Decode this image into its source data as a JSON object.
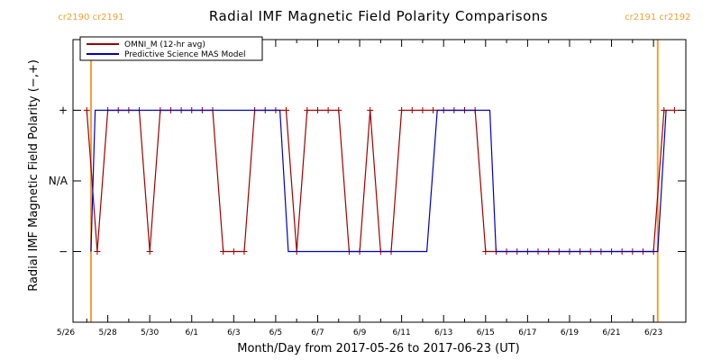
{
  "chart_data": {
    "type": "line",
    "title": "Radial IMF Magnetic Field Polarity Comparisons",
    "xlabel": "Month/Day from 2017-05-26 to 2017-06-23 (UT)",
    "ylabel": "Radial IMF Magnetic Field Polarity (−,+)",
    "xlim": [
      0,
      28.5
    ],
    "ylim": [
      -2,
      2
    ],
    "x_ticks": [
      {
        "x": 0,
        "label": "5/26"
      },
      {
        "x": 2,
        "label": "5/28"
      },
      {
        "x": 4,
        "label": "5/30"
      },
      {
        "x": 6,
        "label": "6/1"
      },
      {
        "x": 8,
        "label": "6/3"
      },
      {
        "x": 10,
        "label": "6/5"
      },
      {
        "x": 12,
        "label": "6/7"
      },
      {
        "x": 14,
        "label": "6/9"
      },
      {
        "x": 16,
        "label": "6/11"
      },
      {
        "x": 18,
        "label": "6/13"
      },
      {
        "x": 20,
        "label": "6/15"
      },
      {
        "x": 22,
        "label": "6/17"
      },
      {
        "x": 24,
        "label": "6/19"
      },
      {
        "x": 26,
        "label": "6/21"
      },
      {
        "x": 28,
        "label": "6/23"
      }
    ],
    "y_ticks": [
      {
        "y": 1,
        "label": "+"
      },
      {
        "y": 0,
        "label": "N/A"
      },
      {
        "y": -1,
        "label": "−"
      }
    ],
    "cr_boundaries": [
      {
        "x": 1.2,
        "left": "cr2190",
        "right": "cr2191"
      },
      {
        "x": 28.2,
        "left": "cr2191",
        "right": "cr2192"
      }
    ],
    "legend_position": "top-left",
    "series": [
      {
        "name": "OMNI_M (12-hr avg)",
        "color": "#a00000",
        "markers": true,
        "points": [
          [
            1.0,
            1
          ],
          [
            1.5,
            -1
          ],
          [
            2.0,
            1
          ],
          [
            2.5,
            1
          ],
          [
            3.0,
            1
          ],
          [
            3.5,
            1
          ],
          [
            4.0,
            -1
          ],
          [
            4.5,
            1
          ],
          [
            5.0,
            1
          ],
          [
            5.5,
            1
          ],
          [
            6.0,
            1
          ],
          [
            6.5,
            1
          ],
          [
            7.0,
            1
          ],
          [
            7.5,
            -1
          ],
          [
            8.0,
            -1
          ],
          [
            8.5,
            -1
          ],
          [
            9.0,
            1
          ],
          [
            9.5,
            1
          ],
          [
            10.0,
            1
          ],
          [
            10.5,
            1
          ],
          [
            11.0,
            -1
          ],
          [
            11.5,
            1
          ],
          [
            12.0,
            1
          ],
          [
            12.5,
            1
          ],
          [
            13.0,
            1
          ],
          [
            13.5,
            -1
          ],
          [
            14.0,
            -1
          ],
          [
            14.5,
            1
          ],
          [
            15.0,
            -1
          ],
          [
            15.5,
            -1
          ],
          [
            16.0,
            1
          ],
          [
            16.5,
            1
          ],
          [
            17.0,
            1
          ],
          [
            17.5,
            1
          ],
          [
            18.0,
            1
          ],
          [
            18.5,
            1
          ],
          [
            19.0,
            1
          ],
          [
            19.5,
            1
          ],
          [
            20.0,
            -1
          ],
          [
            20.5,
            -1
          ],
          [
            21.0,
            -1
          ],
          [
            21.5,
            -1
          ],
          [
            22.0,
            -1
          ],
          [
            22.5,
            -1
          ],
          [
            23.0,
            -1
          ],
          [
            23.5,
            -1
          ],
          [
            24.0,
            -1
          ],
          [
            24.5,
            -1
          ],
          [
            25.0,
            -1
          ],
          [
            25.5,
            -1
          ],
          [
            26.0,
            -1
          ],
          [
            26.5,
            -1
          ],
          [
            27.0,
            -1
          ],
          [
            27.5,
            -1
          ],
          [
            28.0,
            -1
          ],
          [
            28.5,
            1
          ],
          [
            29.0,
            1
          ]
        ]
      },
      {
        "name": "Predictive Science MAS Model",
        "color": "#0000c0",
        "markers": false,
        "points": [
          [
            1.2,
            -1
          ],
          [
            1.4,
            1
          ],
          [
            10.2,
            1
          ],
          [
            10.6,
            -1
          ],
          [
            17.2,
            -1
          ],
          [
            17.7,
            1
          ],
          [
            20.2,
            1
          ],
          [
            20.5,
            -1
          ],
          [
            28.2,
            -1
          ],
          [
            28.6,
            1
          ]
        ]
      }
    ]
  }
}
